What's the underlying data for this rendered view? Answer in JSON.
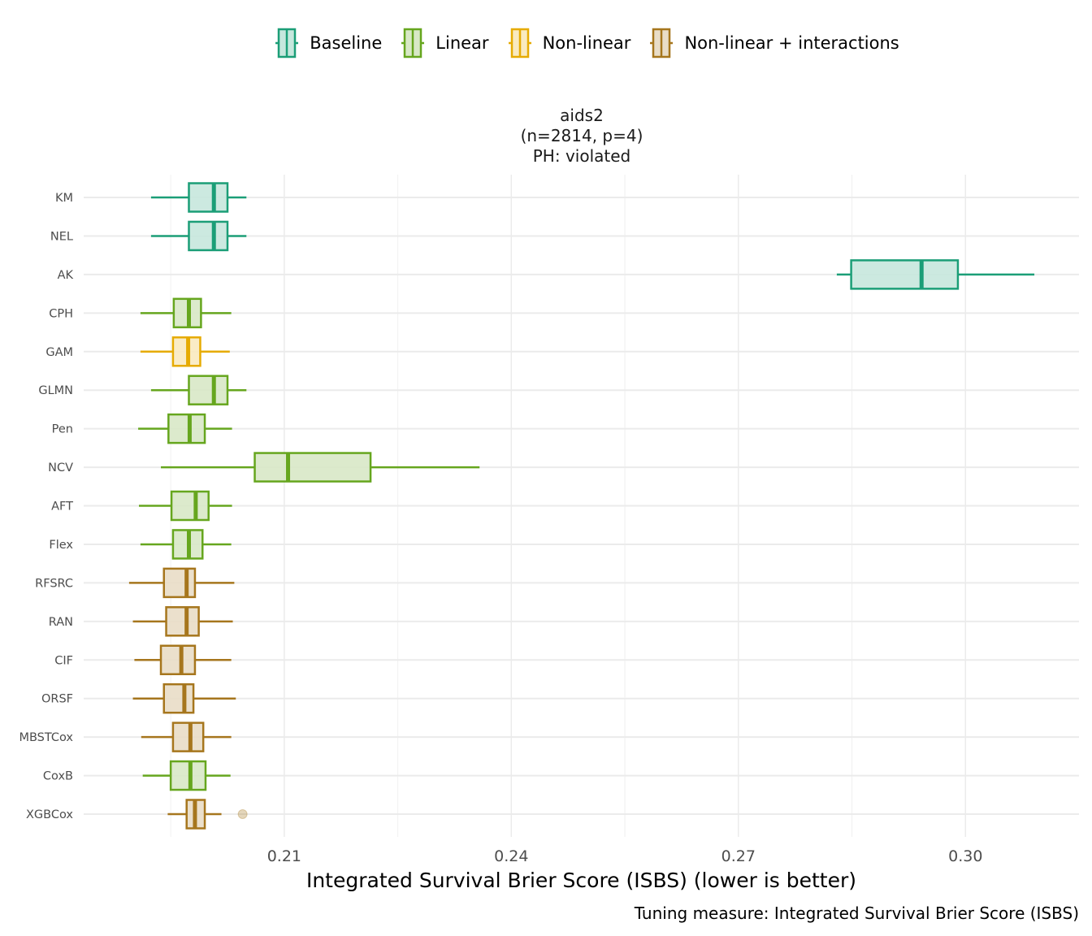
{
  "legend": [
    {
      "label": "Baseline",
      "color": "#1b9e77",
      "fill": "#c6e7dd"
    },
    {
      "label": "Linear",
      "color": "#66a61e",
      "fill": "#d8e8c6"
    },
    {
      "label": "Non-linear",
      "color": "#e6ab02",
      "fill": "#f9eac0"
    },
    {
      "label": "Non-linear + interactions",
      "color": "#a6761d",
      "fill": "#e9ddc7"
    }
  ],
  "chart_data": {
    "type": "boxplot",
    "facet_title": [
      "aids2",
      "(n=2814, p=4)",
      "PH: violated"
    ],
    "xlabel": "Integrated Survival Brier Score (ISBS) (lower is better)",
    "caption": "Tuning measure: Integrated Survival Brier Score (ISBS)",
    "xlim": [
      0.1835,
      0.315
    ],
    "xticks": [
      0.21,
      0.24,
      0.27,
      0.3
    ],
    "xtick_labels": [
      "0.21",
      "0.24",
      "0.27",
      "0.30"
    ],
    "grid": true,
    "legend_position": "top",
    "series": [
      {
        "name": "KM",
        "group": 0,
        "whisker_low": 0.1924,
        "q1": 0.1974,
        "median": 0.2007,
        "q3": 0.2025,
        "whisker_high": 0.205,
        "outliers": []
      },
      {
        "name": "NEL",
        "group": 0,
        "whisker_low": 0.1924,
        "q1": 0.1974,
        "median": 0.2007,
        "q3": 0.2025,
        "whisker_high": 0.205,
        "outliers": []
      },
      {
        "name": "AK",
        "group": 0,
        "whisker_low": 0.283,
        "q1": 0.2849,
        "median": 0.2942,
        "q3": 0.299,
        "whisker_high": 0.3091,
        "outliers": []
      },
      {
        "name": "CPH",
        "group": 1,
        "whisker_low": 0.191,
        "q1": 0.1954,
        "median": 0.1974,
        "q3": 0.199,
        "whisker_high": 0.203,
        "outliers": []
      },
      {
        "name": "GAM",
        "group": 2,
        "whisker_low": 0.191,
        "q1": 0.1953,
        "median": 0.1973,
        "q3": 0.1989,
        "whisker_high": 0.2028,
        "outliers": []
      },
      {
        "name": "GLMN",
        "group": 1,
        "whisker_low": 0.1924,
        "q1": 0.1974,
        "median": 0.2007,
        "q3": 0.2025,
        "whisker_high": 0.205,
        "outliers": []
      },
      {
        "name": "Pen",
        "group": 1,
        "whisker_low": 0.1907,
        "q1": 0.1947,
        "median": 0.1975,
        "q3": 0.1995,
        "whisker_high": 0.2031,
        "outliers": []
      },
      {
        "name": "NCV",
        "group": 1,
        "whisker_low": 0.1937,
        "q1": 0.2061,
        "median": 0.2105,
        "q3": 0.2214,
        "whisker_high": 0.2358,
        "outliers": []
      },
      {
        "name": "AFT",
        "group": 1,
        "whisker_low": 0.1908,
        "q1": 0.1951,
        "median": 0.1983,
        "q3": 0.2,
        "whisker_high": 0.2031,
        "outliers": []
      },
      {
        "name": "Flex",
        "group": 1,
        "whisker_low": 0.191,
        "q1": 0.1953,
        "median": 0.1974,
        "q3": 0.1992,
        "whisker_high": 0.203,
        "outliers": []
      },
      {
        "name": "RFSRC",
        "group": 3,
        "whisker_low": 0.1895,
        "q1": 0.1941,
        "median": 0.1971,
        "q3": 0.1982,
        "whisker_high": 0.2034,
        "outliers": []
      },
      {
        "name": "RAN",
        "group": 3,
        "whisker_low": 0.19,
        "q1": 0.1944,
        "median": 0.1971,
        "q3": 0.1987,
        "whisker_high": 0.2032,
        "outliers": []
      },
      {
        "name": "CIF",
        "group": 3,
        "whisker_low": 0.1902,
        "q1": 0.1937,
        "median": 0.1964,
        "q3": 0.1982,
        "whisker_high": 0.203,
        "outliers": []
      },
      {
        "name": "ORSF",
        "group": 3,
        "whisker_low": 0.19,
        "q1": 0.1941,
        "median": 0.1968,
        "q3": 0.198,
        "whisker_high": 0.2036,
        "outliers": []
      },
      {
        "name": "MBSTCox",
        "group": 3,
        "whisker_low": 0.1911,
        "q1": 0.1953,
        "median": 0.1976,
        "q3": 0.1993,
        "whisker_high": 0.203,
        "outliers": []
      },
      {
        "name": "CoxB",
        "group": 1,
        "whisker_low": 0.1913,
        "q1": 0.195,
        "median": 0.1976,
        "q3": 0.1996,
        "whisker_high": 0.2029,
        "outliers": []
      },
      {
        "name": "XGBCox",
        "group": 3,
        "whisker_low": 0.1946,
        "q1": 0.1971,
        "median": 0.1982,
        "q3": 0.1995,
        "whisker_high": 0.2017,
        "outliers": [
          0.2045
        ]
      }
    ]
  }
}
